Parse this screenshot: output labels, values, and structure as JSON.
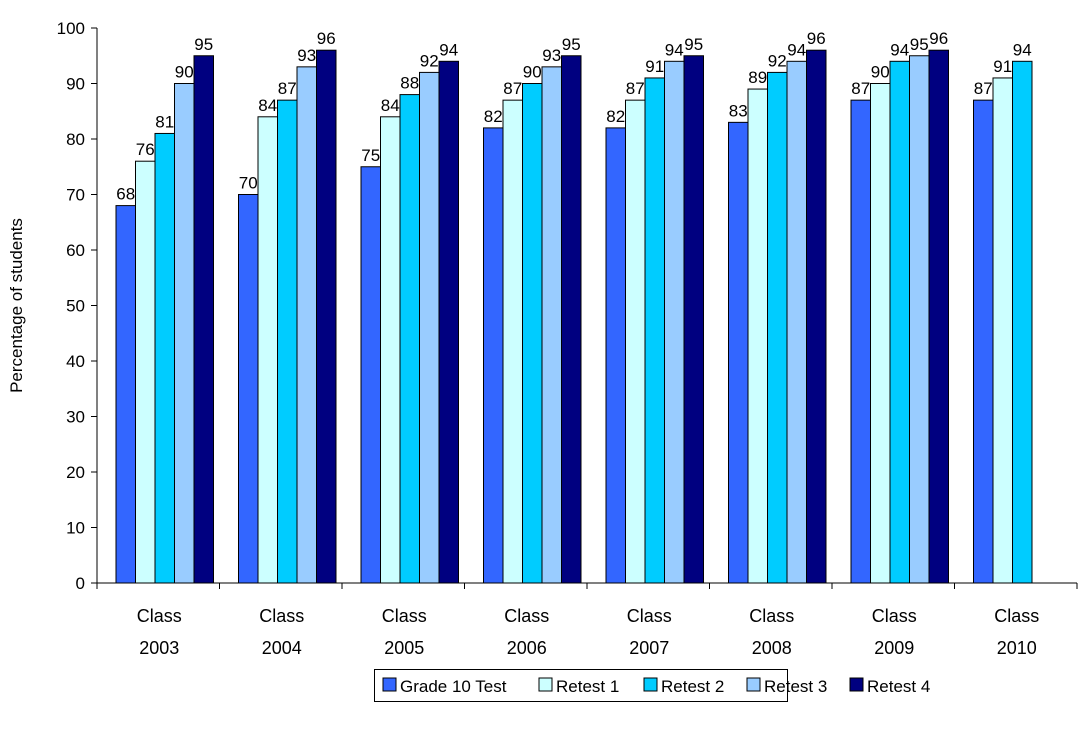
{
  "chart_data": {
    "type": "bar",
    "title": "",
    "xlabel": "",
    "ylabel": "Percentage of students",
    "ylim": [
      0,
      100
    ],
    "yticks": [
      0,
      10,
      20,
      30,
      40,
      50,
      60,
      70,
      80,
      90,
      100
    ],
    "grid": false,
    "legend_position": "bottom",
    "categories": [
      [
        "Class",
        "2003"
      ],
      [
        "Class",
        "2004"
      ],
      [
        "Class",
        "2005"
      ],
      [
        "Class",
        "2006"
      ],
      [
        "Class",
        "2007"
      ],
      [
        "Class",
        "2008"
      ],
      [
        "Class",
        "2009"
      ],
      [
        "Class",
        "2010"
      ]
    ],
    "series": [
      {
        "name": "Grade 10 Test",
        "color": "#3366FF",
        "values": [
          68,
          70,
          75,
          82,
          82,
          83,
          87,
          87
        ]
      },
      {
        "name": "Retest 1",
        "color": "#CCFFFF",
        "values": [
          76,
          84,
          84,
          87,
          87,
          89,
          90,
          91
        ]
      },
      {
        "name": "Retest 2",
        "color": "#00CCFF",
        "values": [
          81,
          87,
          88,
          90,
          91,
          92,
          94,
          94
        ]
      },
      {
        "name": "Retest 3",
        "color": "#99CCFF",
        "values": [
          90,
          93,
          92,
          93,
          94,
          94,
          95,
          null
        ]
      },
      {
        "name": "Retest 4",
        "color": "#000080",
        "values": [
          95,
          96,
          94,
          95,
          95,
          96,
          96,
          null
        ]
      }
    ]
  }
}
